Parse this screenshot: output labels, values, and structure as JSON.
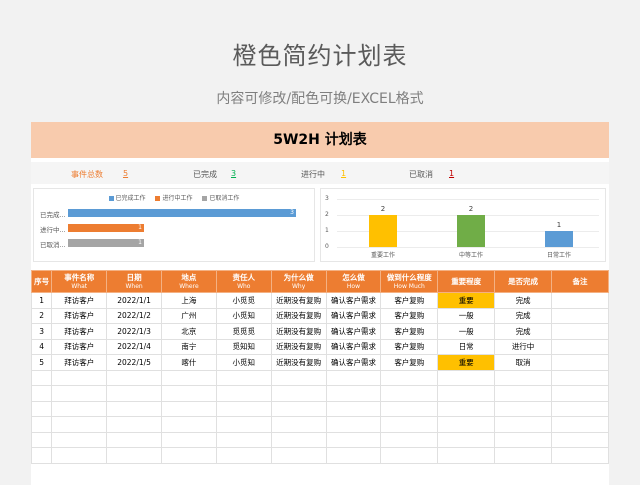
{
  "page": {
    "title": "橙色简约计划表",
    "subtitle": "内容可修改/配色可换/EXCEL格式"
  },
  "sheet": {
    "title": "5W2H 计划表",
    "stats": [
      {
        "label": "事件总数",
        "value": "5",
        "label_color": "#ed7d31",
        "value_color": "#ed7d31"
      },
      {
        "label": "已完成",
        "value": "3",
        "label_color": "#595959",
        "value_color": "#00b050"
      },
      {
        "label": "进行中",
        "value": "1",
        "label_color": "#595959",
        "value_color": "#ffc000"
      },
      {
        "label": "已取消",
        "value": "1",
        "label_color": "#595959",
        "value_color": "#c00000"
      }
    ]
  },
  "chart_data": [
    {
      "type": "bar",
      "orientation": "horizontal",
      "legend": [
        "已完成工作",
        "进行中工作",
        "已取消工作"
      ],
      "categories": [
        "已完成...",
        "进行中...",
        "已取消..."
      ],
      "values": [
        3,
        1,
        1
      ],
      "colors": [
        "#5b9bd5",
        "#ed7d31",
        "#a5a5a5"
      ]
    },
    {
      "type": "bar",
      "categories": [
        "重要工作",
        "中等工作",
        "日常工作"
      ],
      "values": [
        2,
        2,
        1
      ],
      "colors": [
        "#ffc000",
        "#70ad47",
        "#5b9bd5"
      ],
      "yticks": [
        "0",
        "1",
        "2",
        "3"
      ],
      "ylim": [
        0,
        3
      ]
    }
  ],
  "table": {
    "headers": [
      {
        "cn": "序号",
        "en": ""
      },
      {
        "cn": "事件名称",
        "en": "What"
      },
      {
        "cn": "日期",
        "en": "When"
      },
      {
        "cn": "地点",
        "en": "Where"
      },
      {
        "cn": "责任人",
        "en": "Who"
      },
      {
        "cn": "为什么做",
        "en": "Why"
      },
      {
        "cn": "怎么做",
        "en": "How"
      },
      {
        "cn": "做到什么程度",
        "en": "How Much"
      },
      {
        "cn": "重要程度",
        "en": ""
      },
      {
        "cn": "是否完成",
        "en": ""
      },
      {
        "cn": "备注",
        "en": ""
      }
    ],
    "rows": [
      [
        "1",
        "拜访客户",
        "2022/1/1",
        "上海",
        "小觅觅",
        "近期没有复购",
        "确认客户需求",
        "客户复购",
        "重要",
        "完成",
        ""
      ],
      [
        "2",
        "拜访客户",
        "2022/1/2",
        "广州",
        "小觅知",
        "近期没有复购",
        "确认客户需求",
        "客户复购",
        "一般",
        "完成",
        ""
      ],
      [
        "3",
        "拜访客户",
        "2022/1/3",
        "北京",
        "觅觅觅",
        "近期没有复购",
        "确认客户需求",
        "客户复购",
        "一般",
        "完成",
        ""
      ],
      [
        "4",
        "拜访客户",
        "2022/1/4",
        "南宁",
        "觅知知",
        "近期没有复购",
        "确认客户需求",
        "客户复购",
        "日常",
        "进行中",
        ""
      ],
      [
        "5",
        "拜访客户",
        "2022/1/5",
        "喀什",
        "小觅知",
        "近期没有复购",
        "确认客户需求",
        "客户复购",
        "重要",
        "取消",
        ""
      ]
    ],
    "highlight_value": "重要",
    "empty_rows": 6
  }
}
